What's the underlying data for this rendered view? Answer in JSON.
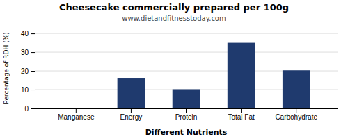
{
  "chart_data": {
    "type": "bar",
    "title": "Cheesecake commercially prepared per 100g",
    "subtitle": "www.dietandfitnesstoday.com",
    "xlabel": "Different Nutrients",
    "ylabel": "Percentage of RDH (%)",
    "categories": [
      "Manganese",
      "Energy",
      "Protein",
      "Total Fat",
      "Carbohydrate"
    ],
    "values": [
      0.3,
      16.3,
      10.2,
      35.0,
      20.3
    ],
    "color": "#1f3a6e",
    "ylim": [
      0,
      43
    ],
    "yticks": [
      0,
      10,
      20,
      30,
      40
    ],
    "grid": true
  }
}
